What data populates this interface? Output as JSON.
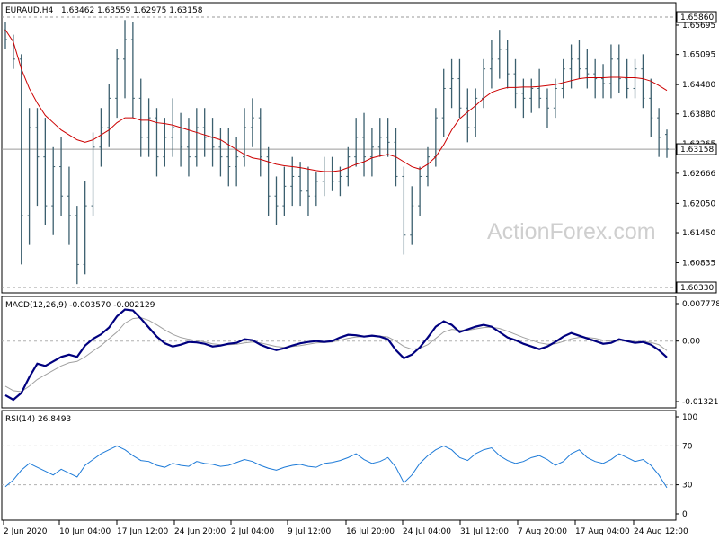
{
  "header": {
    "symbol": "EURAUD,H4",
    "ohlc": "1.63462 1.63559 1.62975 1.63158"
  },
  "watermark": "ActionForex.com",
  "chart_data": [
    {
      "type": "line",
      "panel": "price",
      "title": "EURAUD,H4",
      "yticks": [
        "1.65695",
        "1.65095",
        "1.64480",
        "1.63880",
        "1.63265",
        "1.62666",
        "1.62050",
        "1.61450",
        "1.60835"
      ],
      "ylim": [
        1.6033,
        1.6586
      ],
      "hlines": [
        {
          "label": "1.65860",
          "value": 1.6586,
          "style": "dashed",
          "boxed": true
        },
        {
          "label": "1.60330",
          "value": 1.6033,
          "style": "dashed",
          "boxed": true
        },
        {
          "label": "1.63158",
          "value": 1.63158,
          "style": "solid",
          "boxed": true
        }
      ],
      "series": [
        {
          "type": "bars",
          "color": "#3b5f6e",
          "values": [
            [
              1.656,
              1.6575,
              1.652,
              1.654
            ],
            [
              1.654,
              1.655,
              1.648,
              1.65
            ],
            [
              1.65,
              1.651,
              1.608,
              1.618
            ],
            [
              1.618,
              1.64,
              1.612,
              1.636
            ],
            [
              1.636,
              1.64,
              1.62,
              1.63
            ],
            [
              1.63,
              1.638,
              1.616,
              1.62
            ],
            [
              1.62,
              1.632,
              1.614,
              1.628
            ],
            [
              1.628,
              1.634,
              1.618,
              1.622
            ],
            [
              1.622,
              1.628,
              1.612,
              1.618
            ],
            [
              1.618,
              1.62,
              1.604,
              1.608
            ],
            [
              1.608,
              1.625,
              1.606,
              1.62
            ],
            [
              1.62,
              1.635,
              1.618,
              1.632
            ],
            [
              1.632,
              1.64,
              1.628,
              1.636
            ],
            [
              1.636,
              1.645,
              1.632,
              1.642
            ],
            [
              1.642,
              1.652,
              1.638,
              1.65
            ],
            [
              1.65,
              1.658,
              1.642,
              1.654
            ],
            [
              1.654,
              1.6575,
              1.638,
              1.642
            ],
            [
              1.642,
              1.646,
              1.63,
              1.634
            ],
            [
              1.634,
              1.642,
              1.63,
              1.638
            ],
            [
              1.638,
              1.64,
              1.626,
              1.63
            ],
            [
              1.63,
              1.638,
              1.628,
              1.634
            ],
            [
              1.634,
              1.642,
              1.63,
              1.636
            ],
            [
              1.636,
              1.639,
              1.628,
              1.632
            ],
            [
              1.632,
              1.638,
              1.626,
              1.63
            ],
            [
              1.63,
              1.64,
              1.628,
              1.636
            ],
            [
              1.636,
              1.64,
              1.63,
              1.634
            ],
            [
              1.634,
              1.638,
              1.628,
              1.632
            ],
            [
              1.632,
              1.636,
              1.626,
              1.63
            ],
            [
              1.63,
              1.636,
              1.624,
              1.628
            ],
            [
              1.628,
              1.634,
              1.624,
              1.63
            ],
            [
              1.63,
              1.64,
              1.628,
              1.636
            ],
            [
              1.636,
              1.642,
              1.632,
              1.638
            ],
            [
              1.638,
              1.64,
              1.626,
              1.63
            ],
            [
              1.63,
              1.632,
              1.618,
              1.622
            ],
            [
              1.622,
              1.626,
              1.616,
              1.62
            ],
            [
              1.62,
              1.628,
              1.618,
              1.624
            ],
            [
              1.624,
              1.63,
              1.62,
              1.626
            ],
            [
              1.626,
              1.629,
              1.62,
              1.623
            ],
            [
              1.623,
              1.628,
              1.618,
              1.622
            ],
            [
              1.622,
              1.627,
              1.62,
              1.625
            ],
            [
              1.625,
              1.63,
              1.622,
              1.627
            ],
            [
              1.627,
              1.63,
              1.623,
              1.625
            ],
            [
              1.625,
              1.628,
              1.622,
              1.626
            ],
            [
              1.626,
              1.632,
              1.624,
              1.63
            ],
            [
              1.63,
              1.638,
              1.628,
              1.634
            ],
            [
              1.634,
              1.639,
              1.626,
              1.63
            ],
            [
              1.63,
              1.636,
              1.626,
              1.632
            ],
            [
              1.632,
              1.638,
              1.63,
              1.634
            ],
            [
              1.634,
              1.638,
              1.63,
              1.633
            ],
            [
              1.633,
              1.636,
              1.624,
              1.626
            ],
            [
              1.626,
              1.628,
              1.61,
              1.614
            ],
            [
              1.614,
              1.624,
              1.612,
              1.62
            ],
            [
              1.62,
              1.628,
              1.618,
              1.626
            ],
            [
              1.626,
              1.632,
              1.624,
              1.63
            ],
            [
              1.63,
              1.64,
              1.628,
              1.638
            ],
            [
              1.638,
              1.648,
              1.634,
              1.644
            ],
            [
              1.644,
              1.65,
              1.64,
              1.646
            ],
            [
              1.646,
              1.65,
              1.638,
              1.64
            ],
            [
              1.64,
              1.644,
              1.633,
              1.636
            ],
            [
              1.636,
              1.644,
              1.634,
              1.642
            ],
            [
              1.642,
              1.65,
              1.64,
              1.648
            ],
            [
              1.648,
              1.654,
              1.644,
              1.65
            ],
            [
              1.65,
              1.656,
              1.646,
              1.652
            ],
            [
              1.652,
              1.654,
              1.644,
              1.647
            ],
            [
              1.647,
              1.65,
              1.64,
              1.643
            ],
            [
              1.643,
              1.646,
              1.638,
              1.642
            ],
            [
              1.642,
              1.646,
              1.639,
              1.644
            ],
            [
              1.644,
              1.648,
              1.64,
              1.642
            ],
            [
              1.642,
              1.644,
              1.636,
              1.64
            ],
            [
              1.64,
              1.646,
              1.638,
              1.644
            ],
            [
              1.644,
              1.65,
              1.642,
              1.648
            ],
            [
              1.648,
              1.653,
              1.644,
              1.65
            ],
            [
              1.65,
              1.654,
              1.646,
              1.648
            ],
            [
              1.648,
              1.652,
              1.644,
              1.647
            ],
            [
              1.647,
              1.65,
              1.642,
              1.646
            ],
            [
              1.646,
              1.649,
              1.642,
              1.645
            ],
            [
              1.645,
              1.653,
              1.642,
              1.65
            ],
            [
              1.65,
              1.653,
              1.643,
              1.646
            ],
            [
              1.646,
              1.65,
              1.642,
              1.644
            ],
            [
              1.644,
              1.65,
              1.642,
              1.648
            ],
            [
              1.648,
              1.651,
              1.64,
              1.642
            ],
            [
              1.642,
              1.646,
              1.634,
              1.638
            ],
            [
              1.638,
              1.64,
              1.63,
              1.634
            ],
            [
              1.6346,
              1.6356,
              1.6298,
              1.6316
            ]
          ]
        },
        {
          "name": "",
          "type": "line",
          "color": "#cc0000",
          "values": [
            1.656,
            1.6535,
            1.648,
            1.644,
            1.641,
            1.6385,
            1.637,
            1.6355,
            1.6345,
            1.6335,
            1.633,
            1.6335,
            1.6345,
            1.6355,
            1.637,
            1.638,
            1.638,
            1.6375,
            1.6375,
            1.637,
            1.6368,
            1.6365,
            1.636,
            1.6355,
            1.635,
            1.6345,
            1.634,
            1.6335,
            1.6325,
            1.6315,
            1.6305,
            1.6298,
            1.6295,
            1.629,
            1.6285,
            1.6282,
            1.628,
            1.6278,
            1.6275,
            1.6272,
            1.627,
            1.627,
            1.6272,
            1.6278,
            1.6285,
            1.629,
            1.6298,
            1.6302,
            1.6305,
            1.63,
            1.629,
            1.628,
            1.6275,
            1.6285,
            1.63,
            1.6325,
            1.6355,
            1.6378,
            1.6392,
            1.6405,
            1.642,
            1.6432,
            1.6438,
            1.6442,
            1.6442,
            1.6443,
            1.6443,
            1.6444,
            1.6446,
            1.6448,
            1.6452,
            1.6456,
            1.646,
            1.6462,
            1.6462,
            1.6462,
            1.6463,
            1.6463,
            1.6462,
            1.6462,
            1.646,
            1.6455,
            1.6446,
            1.6436
          ]
        }
      ]
    },
    {
      "type": "line",
      "panel": "macd",
      "title": "MACD(12,26,9) -0.003570 -0.002129",
      "yticks": [
        "0.007778",
        "0.00",
        "-0.01321"
      ],
      "ylim": [
        -0.014,
        0.0085
      ],
      "series": [
        {
          "name": "MACD",
          "color": "#00007f",
          "values": [
            -0.012,
            -0.013,
            -0.0115,
            -0.008,
            -0.005,
            -0.0055,
            -0.0045,
            -0.0035,
            -0.003,
            -0.0035,
            -0.001,
            0.0005,
            0.0015,
            0.003,
            0.0055,
            0.007,
            0.0068,
            0.005,
            0.003,
            0.001,
            -0.0005,
            -0.0012,
            -0.0008,
            -0.0002,
            -0.0003,
            -0.0006,
            -0.0012,
            -0.001,
            -0.0006,
            -0.0004,
            0.0004,
            0.0002,
            -0.0008,
            -0.0015,
            -0.002,
            -0.0016,
            -0.001,
            -0.0005,
            -0.0002,
            0.0,
            -0.0002,
            0.0,
            0.0008,
            0.0014,
            0.0013,
            0.001,
            0.0012,
            0.001,
            0.0004,
            -0.002,
            -0.0038,
            -0.003,
            -0.0014,
            0.0008,
            0.0032,
            0.0044,
            0.0036,
            0.002,
            0.0026,
            0.0032,
            0.0036,
            0.0032,
            0.002,
            0.0008,
            0.0002,
            -0.0006,
            -0.0012,
            -0.0018,
            -0.0012,
            -0.0002,
            0.001,
            0.0018,
            0.0012,
            0.0006,
            0.0,
            -0.0006,
            -0.0004,
            0.0004,
            0.0,
            -0.0004,
            -0.0002,
            -0.0008,
            -0.002,
            -0.0036
          ]
        },
        {
          "name": "Signal",
          "color": "#a0a0a0",
          "values": [
            -0.01,
            -0.011,
            -0.0112,
            -0.01,
            -0.0085,
            -0.0075,
            -0.0065,
            -0.0055,
            -0.0048,
            -0.0045,
            -0.0035,
            -0.0022,
            -0.001,
            0.0005,
            0.002,
            0.004,
            0.005,
            0.0052,
            0.0046,
            0.0036,
            0.0025,
            0.0015,
            0.0008,
            0.0004,
            0.0001,
            -0.0002,
            -0.0006,
            -0.0008,
            -0.0008,
            -0.0007,
            -0.0004,
            -0.0002,
            -0.0004,
            -0.0008,
            -0.0012,
            -0.0014,
            -0.0012,
            -0.001,
            -0.0007,
            -0.0004,
            -0.0003,
            -0.0002,
            0.0002,
            0.0006,
            0.0009,
            0.001,
            0.0011,
            0.0011,
            0.0009,
            0.0,
            -0.0012,
            -0.0018,
            -0.0016,
            -0.0008,
            0.0006,
            0.002,
            0.0026,
            0.0024,
            0.0024,
            0.0027,
            0.003,
            0.0031,
            0.0028,
            0.0022,
            0.0015,
            0.0008,
            0.0002,
            -0.0004,
            -0.0007,
            -0.0006,
            -0.0001,
            0.0005,
            0.0008,
            0.0008,
            0.0006,
            0.0002,
            0.0,
            0.0001,
            0.0001,
            -0.0001,
            -0.0001,
            -0.0003,
            -0.0008,
            -0.0021
          ]
        }
      ]
    },
    {
      "type": "line",
      "panel": "rsi",
      "title": "RSI(14) 26.8493",
      "yticks": [
        "100",
        "70",
        "30",
        "0"
      ],
      "ylim": [
        0,
        100
      ],
      "levels": [
        70,
        30
      ],
      "series": [
        {
          "name": "RSI",
          "color": "#1e7bd8",
          "values": [
            28,
            35,
            45,
            52,
            48,
            44,
            40,
            46,
            42,
            38,
            50,
            56,
            62,
            66,
            70,
            66,
            60,
            55,
            54,
            50,
            48,
            52,
            50,
            49,
            54,
            52,
            51,
            49,
            50,
            53,
            56,
            54,
            50,
            47,
            45,
            48,
            50,
            51,
            49,
            48,
            52,
            53,
            55,
            58,
            62,
            56,
            52,
            54,
            58,
            48,
            32,
            40,
            52,
            60,
            66,
            70,
            66,
            58,
            55,
            62,
            66,
            68,
            60,
            55,
            52,
            54,
            58,
            60,
            56,
            50,
            54,
            62,
            66,
            58,
            54,
            52,
            56,
            62,
            58,
            54,
            56,
            50,
            40,
            27
          ]
        }
      ]
    }
  ],
  "xaxis": {
    "ticks": [
      "2 Jun 2020",
      "10 Jun 04:00",
      "17 Jun 12:00",
      "24 Jun 20:00",
      "2 Jul 04:00",
      "9 Jul 12:00",
      "16 Jul 20:00",
      "24 Jul 04:00",
      "31 Jul 12:00",
      "7 Aug 20:00",
      "17 Aug 04:00",
      "24 Aug 12:00"
    ]
  },
  "colors": {
    "bars": "#3b5f6e",
    "ma": "#cc0000",
    "macd": "#00007f",
    "signal": "#a0a0a0",
    "rsi": "#1e7bd8",
    "grid": "#b0b0b0"
  }
}
